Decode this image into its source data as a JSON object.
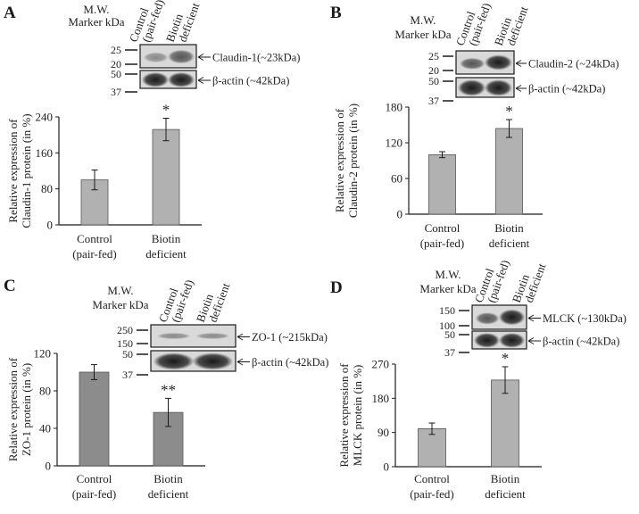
{
  "panels": [
    {
      "letter": "A",
      "header_mw": "M.W.",
      "header_marker": "Marker kDa",
      "lane1_line1": "Control",
      "lane1_line2": "(pair-fed)",
      "lane2_line1": "Biotin",
      "lane2_line2": "deficient",
      "blot1_markers": [
        "25",
        "20"
      ],
      "blot1_label": "Claudin-1(~23kDa)",
      "blot2_markers": [
        "50",
        "37"
      ],
      "blot2_label": "β-actin (~42kDa)"
    },
    {
      "letter": "B",
      "header_mw": "M.W.",
      "header_marker": "Marker kDa",
      "lane1_line1": "Control",
      "lane1_line2": "(pair-fed)",
      "lane2_line1": "Biotin",
      "lane2_line2": "deficient",
      "blot1_markers": [
        "25",
        "20"
      ],
      "blot1_label": "Claudin-2 (~24kDa)",
      "blot2_markers": [
        "50",
        "37"
      ],
      "blot2_label": "β-actin (~42kDa)"
    },
    {
      "letter": "C",
      "header_mw": "M.W.",
      "header_marker": "Marker kDa",
      "lane1_line1": "Control",
      "lane1_line2": "(pair-fed)",
      "lane2_line1": "Biotin",
      "lane2_line2": "deficient",
      "blot1_markers": [
        "250",
        "150"
      ],
      "blot1_label": "ZO-1 (~215kDa)",
      "blot2_markers": [
        "50",
        "37"
      ],
      "blot2_label": "β-actin (~42kDa)"
    },
    {
      "letter": "D",
      "header_mw": "M.W.",
      "header_marker": "Marker kDa",
      "lane1_line1": "Control",
      "lane1_line2": "(pair-fed)",
      "lane2_line1": "Biotin",
      "lane2_line2": "deficient",
      "blot1_markers": [
        "150",
        "100"
      ],
      "blot1_label": "MLCK (~130kDa)",
      "blot2_markers": [
        "50",
        "37"
      ],
      "blot2_label": "β-actin (~42kDa)"
    }
  ],
  "chart_data": [
    {
      "type": "bar",
      "panel": "A",
      "categories": [
        [
          "Control",
          "(pair-fed)"
        ],
        [
          "Biotin",
          "deficient"
        ]
      ],
      "values": [
        100,
        212
      ],
      "errors": [
        22,
        25
      ],
      "significance": [
        "",
        "*"
      ],
      "ylabel_line1": "Relative expression of",
      "ylabel_line2": "Claudin-1 protein (in %)",
      "yticks": [
        0,
        80,
        160,
        240
      ],
      "ylim": [
        0,
        240
      ],
      "bar_color": "#b1b1b1"
    },
    {
      "type": "bar",
      "panel": "B",
      "categories": [
        [
          "Control",
          "(pair-fed)"
        ],
        [
          "Biotin",
          "deficient"
        ]
      ],
      "values": [
        100,
        144
      ],
      "errors": [
        5,
        15
      ],
      "significance": [
        "",
        "*"
      ],
      "ylabel_line1": "Relative expression of",
      "ylabel_line2": "Claudin-2 protein (in %)",
      "yticks": [
        0,
        60,
        120,
        180
      ],
      "ylim": [
        0,
        180
      ],
      "bar_color": "#b1b1b1"
    },
    {
      "type": "bar",
      "panel": "C",
      "categories": [
        [
          "Control",
          "(pair-fed)"
        ],
        [
          "Biotin",
          "deficient"
        ]
      ],
      "values": [
        100,
        57
      ],
      "errors": [
        8,
        15
      ],
      "significance": [
        "",
        "**"
      ],
      "ylabel_line1": "Relative expression of",
      "ylabel_line2": "ZO-1 protein (in %)",
      "yticks": [
        0,
        40,
        80,
        120
      ],
      "ylim": [
        0,
        120
      ],
      "bar_color": "#8c8c8c"
    },
    {
      "type": "bar",
      "panel": "D",
      "categories": [
        [
          "Control",
          "(pair-fed)"
        ],
        [
          "Biotin",
          "deficient"
        ]
      ],
      "values": [
        100,
        228
      ],
      "errors": [
        15,
        35
      ],
      "significance": [
        "",
        "*"
      ],
      "ylabel_line1": "Relative expression of",
      "ylabel_line2": "MLCK protein (in %)",
      "yticks": [
        0,
        90,
        180,
        270
      ],
      "ylim": [
        0,
        270
      ],
      "bar_color": "#b1b1b1"
    }
  ]
}
